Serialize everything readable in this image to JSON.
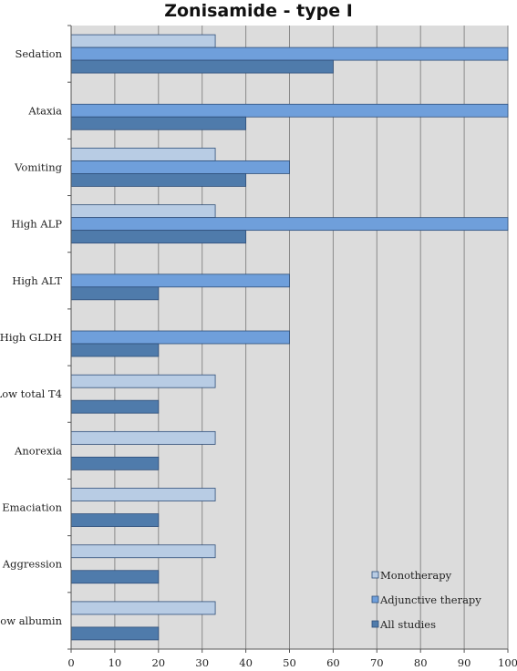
{
  "chart_data": {
    "type": "bar",
    "orientation": "horizontal",
    "title": "Zonisamide - type I",
    "xlabel": "",
    "ylabel": "",
    "xlim": [
      0,
      100
    ],
    "xticks": [
      0,
      10,
      20,
      30,
      40,
      50,
      60,
      70,
      80,
      90,
      100
    ],
    "grid": true,
    "legend_position": "bottom-right",
    "categories": [
      "Sedation",
      "Ataxia",
      "Vomiting",
      "High ALP",
      "High ALT",
      "High GLDH",
      "Low total T4",
      "Anorexia",
      "Emaciation",
      "Aggression",
      "Low albumin"
    ],
    "series": [
      {
        "name": "Monotherapy",
        "color": "#b8cce4",
        "values": [
          33,
          0,
          33,
          33,
          0,
          0,
          33,
          33,
          33,
          33,
          33
        ]
      },
      {
        "name": "Adjunctive therapy",
        "color": "#6f9fdb",
        "values": [
          100,
          100,
          50,
          100,
          50,
          50,
          0,
          0,
          0,
          0,
          0
        ]
      },
      {
        "name": "All studies",
        "color": "#4f7bab",
        "values": [
          60,
          40,
          40,
          40,
          20,
          20,
          20,
          20,
          20,
          20,
          20
        ]
      }
    ]
  }
}
